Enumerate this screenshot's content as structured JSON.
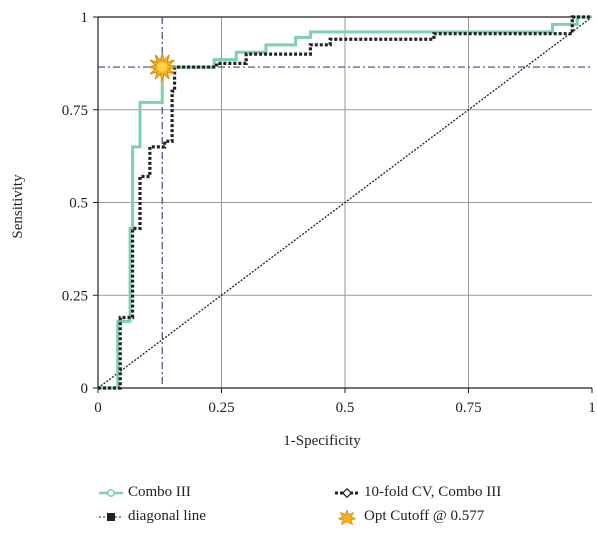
{
  "chart_data": {
    "type": "line",
    "xlabel": "1-Specificity",
    "ylabel": "Sensitivity",
    "xlim": [
      0,
      1
    ],
    "ylim": [
      0,
      1
    ],
    "x_ticks": [
      "0",
      "0.25",
      "0.5",
      "0.75",
      "1"
    ],
    "y_ticks": [
      "0",
      "0.25",
      "0.5",
      "0.75",
      "1"
    ],
    "grid": true,
    "legend_placement": "bottom",
    "series": [
      {
        "name": "Combo III",
        "color": "#7fcfb0",
        "step": true,
        "points": [
          [
            0,
            0
          ],
          [
            0.04,
            0
          ],
          [
            0.04,
            0.18
          ],
          [
            0.065,
            0.18
          ],
          [
            0.065,
            0.43
          ],
          [
            0.07,
            0.43
          ],
          [
            0.07,
            0.65
          ],
          [
            0.085,
            0.65
          ],
          [
            0.085,
            0.77
          ],
          [
            0.13,
            0.77
          ],
          [
            0.13,
            0.865
          ],
          [
            0.235,
            0.865
          ],
          [
            0.235,
            0.885
          ],
          [
            0.28,
            0.885
          ],
          [
            0.28,
            0.905
          ],
          [
            0.34,
            0.905
          ],
          [
            0.34,
            0.925
          ],
          [
            0.4,
            0.925
          ],
          [
            0.4,
            0.945
          ],
          [
            0.43,
            0.945
          ],
          [
            0.43,
            0.96
          ],
          [
            0.92,
            0.96
          ],
          [
            0.92,
            0.98
          ],
          [
            0.97,
            0.98
          ],
          [
            0.97,
            1
          ],
          [
            1,
            1
          ]
        ]
      },
      {
        "name": "10-fold CV, Combo III",
        "color": "#222222",
        "step": true,
        "points": [
          [
            0,
            0
          ],
          [
            0.045,
            0
          ],
          [
            0.045,
            0.19
          ],
          [
            0.07,
            0.19
          ],
          [
            0.07,
            0.43
          ],
          [
            0.085,
            0.43
          ],
          [
            0.085,
            0.57
          ],
          [
            0.105,
            0.57
          ],
          [
            0.105,
            0.65
          ],
          [
            0.135,
            0.65
          ],
          [
            0.135,
            0.665
          ],
          [
            0.15,
            0.665
          ],
          [
            0.15,
            0.8
          ],
          [
            0.155,
            0.8
          ],
          [
            0.155,
            0.865
          ],
          [
            0.24,
            0.865
          ],
          [
            0.24,
            0.875
          ],
          [
            0.3,
            0.875
          ],
          [
            0.3,
            0.9
          ],
          [
            0.43,
            0.9
          ],
          [
            0.43,
            0.925
          ],
          [
            0.47,
            0.925
          ],
          [
            0.47,
            0.94
          ],
          [
            0.68,
            0.94
          ],
          [
            0.68,
            0.955
          ],
          [
            0.96,
            0.955
          ],
          [
            0.96,
            1
          ],
          [
            1,
            1
          ]
        ]
      },
      {
        "name": "diagonal line",
        "color": "#222222",
        "points": [
          [
            0,
            0
          ],
          [
            1,
            1
          ]
        ]
      }
    ],
    "opt_cutoff": {
      "name": "Opt Cutoff @ 0.577",
      "x": 0.13,
      "y": 0.865,
      "color": "#f5b21a"
    }
  }
}
